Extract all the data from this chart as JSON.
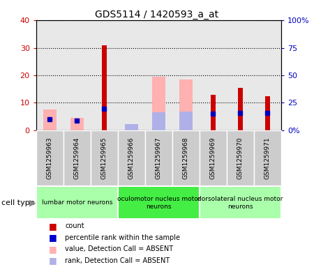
{
  "title": "GDS5114 / 1420593_a_at",
  "samples": [
    "GSM1259963",
    "GSM1259964",
    "GSM1259965",
    "GSM1259966",
    "GSM1259967",
    "GSM1259968",
    "GSM1259969",
    "GSM1259970",
    "GSM1259971"
  ],
  "count_values": [
    0,
    0,
    31,
    0,
    0,
    0,
    13,
    15.5,
    12.5
  ],
  "rank_values": [
    10,
    8.5,
    19.5,
    0,
    0,
    0,
    15,
    16,
    16
  ],
  "pink_bar_values": [
    7.5,
    4.5,
    0,
    2,
    19.5,
    18.5,
    0,
    0,
    0
  ],
  "blue_bar_values": [
    0,
    0,
    0,
    5.5,
    16.5,
    17,
    0,
    0,
    0
  ],
  "ylim_left": [
    0,
    40
  ],
  "ylim_right": [
    0,
    100
  ],
  "y_ticks_left": [
    0,
    10,
    20,
    30,
    40
  ],
  "y_ticks_right": [
    0,
    25,
    50,
    75,
    100
  ],
  "y_tick_labels_left": [
    "0",
    "10",
    "20",
    "30",
    "40"
  ],
  "y_tick_labels_right": [
    "0%",
    "25",
    "50",
    "75",
    "100%"
  ],
  "cell_type_groups": [
    {
      "label": "lumbar motor neurons",
      "start": 0,
      "end": 3,
      "color": "#aaffaa"
    },
    {
      "label": "oculomotor nucleus motor\nneurons",
      "start": 3,
      "end": 6,
      "color": "#44ee44"
    },
    {
      "label": "dorsolateral nucleus motor\nneurons",
      "start": 6,
      "end": 9,
      "color": "#aaffaa"
    }
  ],
  "legend_items": [
    {
      "label": "count",
      "color": "#cc0000"
    },
    {
      "label": "percentile rank within the sample",
      "color": "#0000cc"
    },
    {
      "label": "value, Detection Call = ABSENT",
      "color": "#ffb0b0"
    },
    {
      "label": "rank, Detection Call = ABSENT",
      "color": "#b0b0e8"
    }
  ],
  "bg_color": "#ffffff",
  "plot_bg": "#e8e8e8",
  "xlabel_bg": "#cccccc"
}
